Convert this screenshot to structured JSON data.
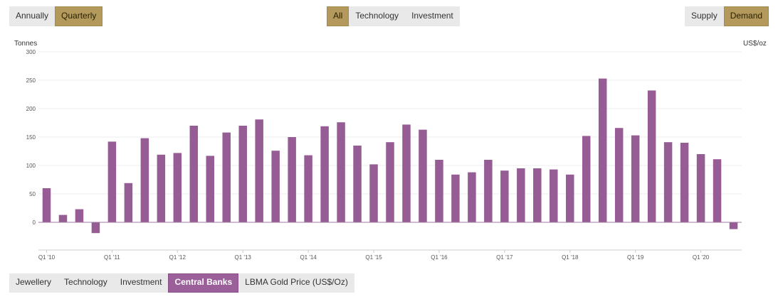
{
  "controls": {
    "period": {
      "items": [
        "Annually",
        "Quarterly"
      ],
      "active": 1
    },
    "sector": {
      "items": [
        "All",
        "Technology",
        "Investment"
      ],
      "active": 0
    },
    "flow": {
      "items": [
        "Supply",
        "Demand"
      ],
      "active": 1
    },
    "category": {
      "items": [
        "Jewellery",
        "Technology",
        "Investment",
        "Central Banks",
        "LBMA Gold Price (US$/Oz)"
      ],
      "active": 3
    }
  },
  "colors": {
    "bar": "#955d94",
    "accent_gold": "#b39a5c",
    "accent_purple": "#9b5f9a",
    "grid": "#ececec",
    "baseline": "#a07aa0"
  },
  "chart_data": {
    "type": "bar",
    "title": "",
    "ylabel": "Tonnes",
    "y2label": "US$/oz",
    "ylim": [
      -50,
      300
    ],
    "yticks": [
      0,
      50,
      100,
      150,
      200,
      250,
      300
    ],
    "grid": true,
    "series": [
      {
        "values": [
          60,
          13,
          23,
          -19,
          142,
          69,
          148,
          119,
          122,
          170,
          117,
          158,
          170,
          181,
          126,
          150,
          118,
          169,
          176,
          135,
          102,
          141,
          172,
          163,
          110,
          84,
          88,
          110,
          91,
          95,
          95,
          93,
          84,
          152,
          253,
          166,
          153,
          232,
          141,
          140,
          120,
          111,
          -12
        ]
      }
    ],
    "x_tick_labels": [
      {
        "index": 0,
        "label": "Q1 '10"
      },
      {
        "index": 4,
        "label": "Q1 '11"
      },
      {
        "index": 8,
        "label": "Q1 '12"
      },
      {
        "index": 12,
        "label": "Q1 '13"
      },
      {
        "index": 16,
        "label": "Q1 '14"
      },
      {
        "index": 20,
        "label": "Q1 '15"
      },
      {
        "index": 24,
        "label": "Q1 '16"
      },
      {
        "index": 28,
        "label": "Q1 '17"
      },
      {
        "index": 32,
        "label": "Q1 '18"
      },
      {
        "index": 36,
        "label": "Q1 '19"
      },
      {
        "index": 40,
        "label": "Q1 '20"
      }
    ]
  }
}
